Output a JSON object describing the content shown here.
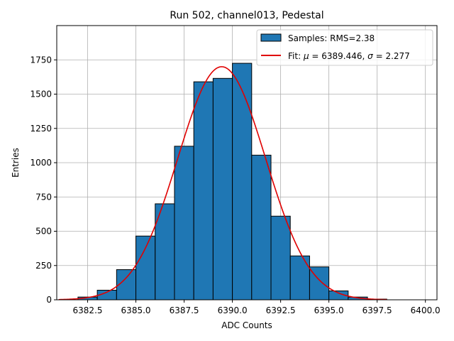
{
  "chart_data": {
    "type": "bar",
    "title": "Run 502, channel013, Pedestal",
    "xlabel": "ADC Counts",
    "ylabel": "Entries",
    "xlim": [
      6380.9,
      6400.6
    ],
    "ylim": [
      0,
      2000
    ],
    "grid": true,
    "legend_position": "top-right",
    "x_ticks": [
      6382.5,
      6385.0,
      6387.5,
      6390.0,
      6392.5,
      6395.0,
      6397.5,
      6400.0
    ],
    "x_tick_labels": [
      "6382.5",
      "6385.0",
      "6387.5",
      "6390.0",
      "6392.5",
      "6395.0",
      "6397.5",
      "6400.0"
    ],
    "y_ticks": [
      0,
      250,
      500,
      750,
      1000,
      1250,
      1500,
      1750
    ],
    "y_tick_labels": [
      "0",
      "250",
      "500",
      "750",
      "1000",
      "1250",
      "1500",
      "1750"
    ],
    "histogram": {
      "name": "Samples: RMS=2.38",
      "color": "#1f77b4",
      "edge_color": "#000000",
      "bins": [
        {
          "x0": 6382,
          "x1": 6383,
          "count": 20
        },
        {
          "x0": 6383,
          "x1": 6384,
          "count": 70
        },
        {
          "x0": 6384,
          "x1": 6385,
          "count": 220
        },
        {
          "x0": 6385,
          "x1": 6386,
          "count": 465
        },
        {
          "x0": 6386,
          "x1": 6387,
          "count": 700
        },
        {
          "x0": 6387,
          "x1": 6388,
          "count": 1120
        },
        {
          "x0": 6388,
          "x1": 6389,
          "count": 1590
        },
        {
          "x0": 6389,
          "x1": 6390,
          "count": 1615
        },
        {
          "x0": 6390,
          "x1": 6391,
          "count": 1725
        },
        {
          "x0": 6391,
          "x1": 6392,
          "count": 1055
        },
        {
          "x0": 6392,
          "x1": 6393,
          "count": 610
        },
        {
          "x0": 6393,
          "x1": 6394,
          "count": 320
        },
        {
          "x0": 6394,
          "x1": 6395,
          "count": 240
        },
        {
          "x0": 6395,
          "x1": 6396,
          "count": 65
        },
        {
          "x0": 6396,
          "x1": 6397,
          "count": 20
        },
        {
          "x0": 6397,
          "x1": 6398,
          "count": 5
        }
      ]
    },
    "fit": {
      "name_prefix": "Fit: ",
      "mu_symbol": "μ",
      "mu_text": " = 6389.446, ",
      "sigma_symbol": "σ",
      "sigma_text": " = 2.277",
      "color": "#e00000",
      "mu": 6389.446,
      "sigma": 2.277,
      "amplitude": 1700,
      "x_range": [
        6381.0,
        6398.0
      ]
    }
  }
}
